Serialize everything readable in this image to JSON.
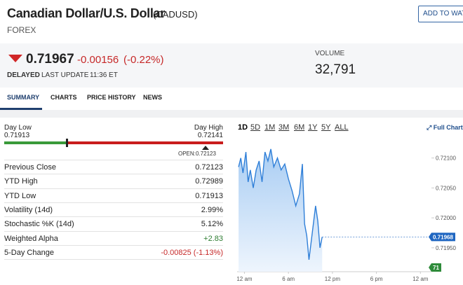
{
  "header": {
    "title": "Canadian Dollar/U.S. Dollar",
    "symbol": "(CADUSD)",
    "category": "FOREX",
    "button": "ADD TO WATC"
  },
  "quote": {
    "price": "0.71967",
    "change": "-0.00156",
    "change_pct": "(-0.22%)",
    "delayed": "DELAYED",
    "last_update_label": "LAST UPDATE",
    "last_update": "11:36 ET",
    "volume_label": "VOLUME",
    "volume": "32,791"
  },
  "tabs": [
    "SUMMARY",
    "CHARTS",
    "PRICE HISTORY",
    "NEWS"
  ],
  "range": {
    "low_label": "Day Low",
    "low": "0.71913",
    "high_label": "Day High",
    "high": "0.72141",
    "open_label": "OPEN:",
    "open": "0.72123"
  },
  "stats": [
    [
      "Previous Close",
      "0.72123"
    ],
    [
      "YTD High",
      "0.72989"
    ],
    [
      "YTD Low",
      "0.71913"
    ],
    [
      "Volatility (14d)",
      "2.99%"
    ],
    [
      "Stochastic %K (14d)",
      "5.12%"
    ],
    [
      "Weighted Alpha",
      "+2.83"
    ],
    [
      "5-Day Change",
      "-0.00825 (-1.13%)"
    ]
  ],
  "periods": [
    "1D",
    "5D",
    "1M",
    "3M",
    "6M",
    "1Y",
    "5Y",
    "ALL"
  ],
  "full_chart": "Full Chart",
  "chart_data": {
    "type": "line",
    "color": "#2f7fd8",
    "x": [
      -0.8,
      -0.5,
      -0.2,
      0.2,
      0.5,
      0.8,
      1.2,
      1.6,
      2.0,
      2.4,
      2.8,
      3.2,
      3.6,
      4.0,
      4.5,
      5.0,
      5.5,
      6.0,
      6.5,
      7.0,
      7.5,
      7.9,
      8.2,
      8.5,
      8.8,
      9.1,
      9.4,
      9.7,
      10.0,
      10.3,
      10.6
    ],
    "values": [
      0.72085,
      0.721,
      0.72075,
      0.7211,
      0.7206,
      0.7208,
      0.7205,
      0.7208,
      0.72095,
      0.7206,
      0.7211,
      0.72095,
      0.72115,
      0.72085,
      0.721,
      0.7208,
      0.7209,
      0.72065,
      0.72045,
      0.7202,
      0.7204,
      0.7209,
      0.7199,
      0.7197,
      0.7193,
      0.7196,
      0.7199,
      0.7202,
      0.71995,
      0.7195,
      0.71968
    ],
    "xlim": [
      -1,
      25.5
    ],
    "ylim": [
      0.7191,
      0.7213
    ],
    "xticks": [
      {
        "value": 0,
        "label": "12 am"
      },
      {
        "value": 6,
        "label": "6 am"
      },
      {
        "value": 12,
        "label": "12 pm"
      },
      {
        "value": 18,
        "label": "6 pm"
      },
      {
        "value": 24,
        "label": "12 am"
      }
    ],
    "yticks": [
      {
        "value": 0.721,
        "label": "0.72100"
      },
      {
        "value": 0.7205,
        "label": "0.72050"
      },
      {
        "value": 0.72,
        "label": "0.72000"
      },
      {
        "value": 0.7195,
        "label": "0.71950"
      }
    ],
    "current_label": "0.71968",
    "volume_label": "71"
  }
}
